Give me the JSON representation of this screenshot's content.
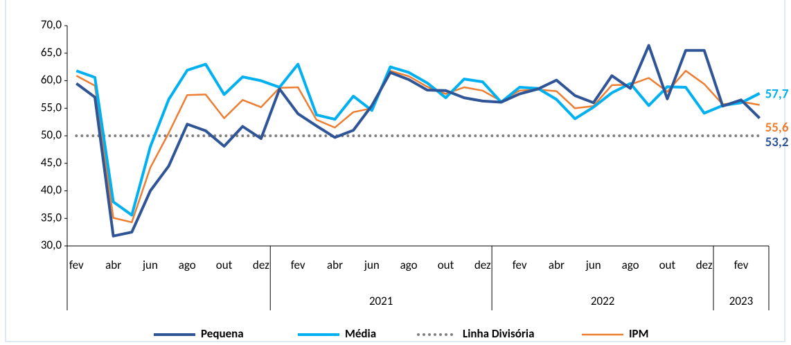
{
  "chart_data": {
    "type": "line",
    "categories": [
      "fev",
      null,
      "abr",
      null,
      "jun",
      null,
      "ago",
      null,
      "out",
      null,
      "dez",
      null,
      "fev",
      null,
      "abr",
      null,
      "jun",
      null,
      "ago",
      null,
      "out",
      null,
      "dez",
      null,
      "fev",
      null,
      "abr",
      null,
      "jun",
      null,
      "ago",
      null,
      "out",
      null,
      "dez",
      null,
      "fev",
      null
    ],
    "groups": [
      {
        "label": null,
        "size": 11
      },
      {
        "label": "2021",
        "size": 12
      },
      {
        "label": "2022",
        "size": 12
      },
      {
        "label": "2023",
        "size": 3
      }
    ],
    "series": [
      {
        "name": "Pequena",
        "color": "#2f5597",
        "width": 4,
        "values": [
          59.5,
          57,
          31.8,
          32.5,
          40,
          44.5,
          52.1,
          50.9,
          48.1,
          51.7,
          49.5,
          58.5,
          54,
          51.8,
          49.7,
          51,
          55.5,
          61.5,
          60.2,
          58.3,
          58.2,
          56.9,
          56.3,
          56.1,
          57.6,
          58.5,
          60.1,
          57.3,
          56,
          60.9,
          58.6,
          66.4,
          56.7,
          65.5,
          65.5,
          55.4,
          56.5,
          53.2
        ],
        "value_labels": [
          null,
          null,
          null,
          null,
          null,
          null,
          null,
          null,
          null,
          null,
          null,
          null,
          null,
          null,
          null,
          null,
          null,
          null,
          null,
          null,
          null,
          null,
          null,
          null,
          null,
          null,
          null,
          null,
          null,
          null,
          null,
          null,
          null,
          null,
          null,
          null,
          null,
          "53,2"
        ]
      },
      {
        "name": "Média",
        "color": "#00b0f0",
        "width": 4,
        "values": [
          61.8,
          60.6,
          38,
          35.6,
          48,
          56.6,
          61.9,
          63,
          57.5,
          60.7,
          60,
          58.8,
          63,
          53.8,
          53,
          57.2,
          54.6,
          62.5,
          61.5,
          59.6,
          56.9,
          60.3,
          59.8,
          56.1,
          58.8,
          58.6,
          56.6,
          53.1,
          55.2,
          57.8,
          59.5,
          55.5,
          58.9,
          58.8,
          54.1,
          55.5,
          56,
          57.7
        ],
        "value_labels": [
          null,
          null,
          null,
          null,
          null,
          null,
          null,
          null,
          null,
          null,
          null,
          null,
          null,
          null,
          null,
          null,
          null,
          null,
          null,
          null,
          null,
          null,
          null,
          null,
          null,
          null,
          null,
          null,
          null,
          null,
          null,
          null,
          null,
          null,
          null,
          null,
          null,
          "57,7"
        ]
      },
      {
        "name": "Linha Divisória",
        "color": "#7f7f7f",
        "width": 4,
        "dotted": true,
        "values": [
          50,
          50,
          50,
          50,
          50,
          50,
          50,
          50,
          50,
          50,
          50,
          50,
          50,
          50,
          50,
          50,
          50,
          50,
          50,
          50,
          50,
          50,
          50,
          50,
          50,
          50,
          50,
          50,
          50,
          50,
          50,
          50,
          50,
          50,
          50,
          50,
          50,
          50
        ]
      },
      {
        "name": "IPM",
        "color": "#ed7d31",
        "width": 2.5,
        "values": [
          60.9,
          59.1,
          35.1,
          34.3,
          44.2,
          50.5,
          57.4,
          57.5,
          53.2,
          56.5,
          55.2,
          58.7,
          58.8,
          52.9,
          51.5,
          54.3,
          55,
          61.8,
          60.8,
          58.9,
          57.6,
          58.8,
          58.2,
          56.3,
          58.2,
          58.4,
          58.1,
          55,
          55.4,
          59.2,
          59.3,
          60.5,
          58,
          61.8,
          59.4,
          55.7,
          56.2,
          55.6
        ],
        "value_labels": [
          null,
          null,
          null,
          null,
          null,
          null,
          null,
          null,
          null,
          null,
          null,
          null,
          null,
          null,
          null,
          null,
          null,
          null,
          null,
          null,
          null,
          null,
          null,
          null,
          null,
          null,
          null,
          null,
          null,
          null,
          null,
          null,
          null,
          null,
          null,
          null,
          null,
          "55,6"
        ]
      }
    ],
    "ylim": [
      30,
      70
    ],
    "yticks": [
      {
        "value": 30,
        "label": "30,0"
      },
      {
        "value": 35,
        "label": "35,0"
      },
      {
        "value": 40,
        "label": "40,0"
      },
      {
        "value": 45,
        "label": "45,0"
      },
      {
        "value": 50,
        "label": "50,0"
      },
      {
        "value": 55,
        "label": "55,0"
      },
      {
        "value": 60,
        "label": "60,0"
      },
      {
        "value": 65,
        "label": "65,0"
      },
      {
        "value": 70,
        "label": "70,0"
      }
    ],
    "legend": "bottom"
  }
}
